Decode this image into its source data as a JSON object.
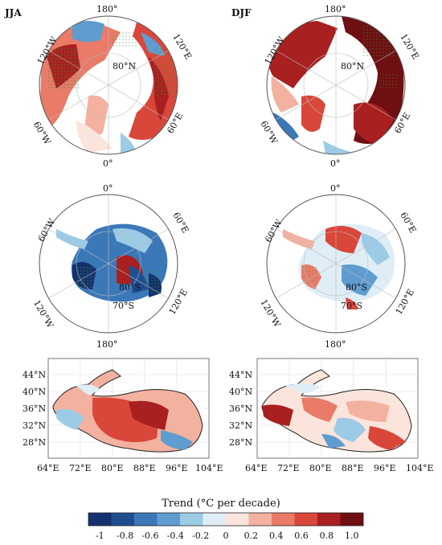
{
  "colors": {
    "neg_strong": "#14306e",
    "neg_mid": "#3b78b8",
    "neg_light": "#9ccbe6",
    "neutral": "#f4f1ee",
    "pos_light": "#f3b1a0",
    "pos_mid": "#d9473a",
    "pos_strong": "#6e0f12",
    "stipple": "#3f8f3a"
  },
  "arctic": {
    "lat_label": "80°N",
    "lon_labels": [
      "180°",
      "120°E",
      "60°E",
      "0°",
      "60°W",
      "120°W"
    ]
  },
  "antarctic": {
    "lat_labels": [
      "80°S",
      "70°S"
    ],
    "lon_labels": [
      "0°",
      "60°E",
      "120°E",
      "180°",
      "120°W",
      "60°W"
    ]
  },
  "tibet": {
    "lat_labels": [
      "44°N",
      "40°N",
      "36°N",
      "32°N",
      "28°N"
    ],
    "lon_labels": [
      "64°E",
      "72°E",
      "80°E",
      "88°E",
      "96°E",
      "104°E"
    ]
  },
  "panels": [
    {
      "season": "JJA",
      "arctic_trend": "warm",
      "antarctic_trend": "cool",
      "tibet_trend": "warm"
    },
    {
      "season": "DJF",
      "arctic_trend": "strong-warm",
      "antarctic_trend": "mixed",
      "tibet_trend": "warm"
    }
  ],
  "colorbar": {
    "title": "Trend (°C per decade)",
    "ticks": [
      "-1",
      "-0.8",
      "-0.6",
      "-0.4",
      "-0.2",
      "0",
      "0.2",
      "0.4",
      "0.6",
      "0.8",
      "1.0"
    ],
    "colors": [
      "#14306e",
      "#1f4d8f",
      "#3b78b8",
      "#5f9ccf",
      "#9ccbe6",
      "#dfeef6",
      "#fbe4dc",
      "#f3b1a0",
      "#e97b68",
      "#d9473a",
      "#a8201f",
      "#6e0f12"
    ]
  }
}
